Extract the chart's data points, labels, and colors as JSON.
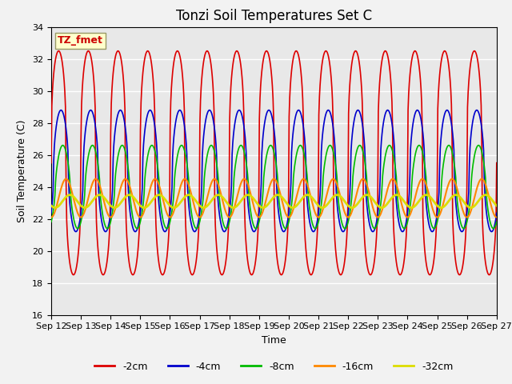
{
  "title": "Tonzi Soil Temperatures Set C",
  "xlabel": "Time",
  "ylabel": "Soil Temperature (C)",
  "ylim": [
    16,
    34
  ],
  "yticks": [
    16,
    18,
    20,
    22,
    24,
    26,
    28,
    30,
    32,
    34
  ],
  "x_start_day": 12,
  "x_end_day": 27,
  "x_tick_days": [
    12,
    13,
    14,
    15,
    16,
    17,
    18,
    19,
    20,
    21,
    22,
    23,
    24,
    25,
    26,
    27
  ],
  "annotation_label": "TZ_fmet",
  "annotation_color": "#cc0000",
  "annotation_bg": "#ffffcc",
  "annotation_border": "#999966",
  "lines": [
    {
      "label": "-2cm",
      "color": "#dd0000",
      "lw": 1.2
    },
    {
      "label": "-4cm",
      "color": "#0000cc",
      "lw": 1.2
    },
    {
      "label": "-8cm",
      "color": "#00bb00",
      "lw": 1.2
    },
    {
      "label": "-16cm",
      "color": "#ff8800",
      "lw": 1.5
    },
    {
      "label": "-32cm",
      "color": "#dddd00",
      "lw": 2.0
    }
  ],
  "bg_color": "#e8e8e8",
  "fig_bg_color": "#f2f2f2",
  "grid_color": "#ffffff",
  "title_fontsize": 12,
  "label_fontsize": 9,
  "tick_fontsize": 8,
  "n_days": 15,
  "pts_per_day": 48,
  "base_2cm": 25.5,
  "base_4cm": 25.0,
  "base_8cm": 24.0,
  "base_16cm": 23.3,
  "base_32cm": 23.1,
  "amp_2cm": 7.0,
  "amp_4cm": 3.8,
  "amp_8cm": 2.6,
  "amp_16cm": 1.2,
  "amp_32cm": 0.4,
  "phase_shift_2cm": 0.0,
  "phase_shift_4cm": 0.08,
  "phase_shift_8cm": 0.14,
  "phase_shift_16cm": 0.25,
  "phase_shift_32cm": 0.38,
  "sharpness_2cm": 3.0,
  "sharpness_4cm": 2.0,
  "sharpness_8cm": 1.5,
  "sharpness_16cm": 1.0,
  "sharpness_32cm": 1.0
}
